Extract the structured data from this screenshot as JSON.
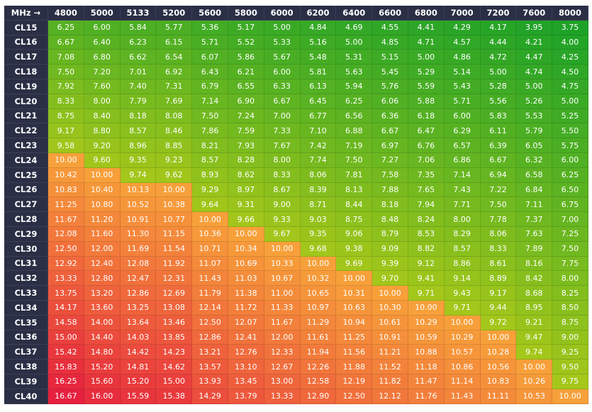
{
  "table": {
    "corner": "MHz →",
    "columns": [
      "4800",
      "5000",
      "5133",
      "5200",
      "5600",
      "5800",
      "6000",
      "6200",
      "6400",
      "6600",
      "6800",
      "7000",
      "7200",
      "7600",
      "8000"
    ],
    "rows": [
      {
        "label": "CL15",
        "cells": [
          "6.25",
          "6.00",
          "5.84",
          "5.77",
          "5.36",
          "5.17",
          "5.00",
          "4.84",
          "4.69",
          "4.55",
          "4.41",
          "4.29",
          "4.17",
          "3.95",
          "3.75"
        ]
      },
      {
        "label": "CL16",
        "cells": [
          "6.67",
          "6.40",
          "6.23",
          "6.15",
          "5.71",
          "5.52",
          "5.33",
          "5.16",
          "5.00",
          "4.85",
          "4.71",
          "4.57",
          "4.44",
          "4.21",
          "4.00"
        ]
      },
      {
        "label": "CL17",
        "cells": [
          "7.08",
          "6.80",
          "6.62",
          "6.54",
          "6.07",
          "5.86",
          "5.67",
          "5.48",
          "5.31",
          "5.15",
          "5.00",
          "4.86",
          "4.72",
          "4.47",
          "4.25"
        ]
      },
      {
        "label": "CL18",
        "cells": [
          "7.50",
          "7.20",
          "7.01",
          "6.92",
          "6.43",
          "6.21",
          "6.00",
          "5.81",
          "5.63",
          "5.45",
          "5.29",
          "5.14",
          "5.00",
          "4.74",
          "4.50"
        ]
      },
      {
        "label": "CL19",
        "cells": [
          "7.92",
          "7.60",
          "7.40",
          "7.31",
          "6.79",
          "6.55",
          "6.33",
          "6.13",
          "5.94",
          "5.76",
          "5.59",
          "5.43",
          "5.28",
          "5.00",
          "4.75"
        ]
      },
      {
        "label": "CL20",
        "cells": [
          "8.33",
          "8.00",
          "7.79",
          "7.69",
          "7.14",
          "6.90",
          "6.67",
          "6.45",
          "6.25",
          "6.06",
          "5.88",
          "5.71",
          "5.56",
          "5.26",
          "5.00"
        ]
      },
      {
        "label": "CL21",
        "cells": [
          "8.75",
          "8.40",
          "8.18",
          "8.08",
          "7.50",
          "7.24",
          "7.00",
          "6.77",
          "6.56",
          "6.36",
          "6.18",
          "6.00",
          "5.83",
          "5.53",
          "5.25"
        ]
      },
      {
        "label": "CL22",
        "cells": [
          "9.17",
          "8.80",
          "8.57",
          "8.46",
          "7.86",
          "7.59",
          "7.33",
          "7.10",
          "6.88",
          "6.67",
          "6.47",
          "6.29",
          "6.11",
          "5.79",
          "5.50"
        ]
      },
      {
        "label": "CL23",
        "cells": [
          "9.58",
          "9.20",
          "8.96",
          "8.85",
          "8.21",
          "7.93",
          "7.67",
          "7.42",
          "7.19",
          "6.97",
          "6.76",
          "6.57",
          "6.39",
          "6.05",
          "5.75"
        ]
      },
      {
        "label": "CL24",
        "cells": [
          "10.00",
          "9.60",
          "9.35",
          "9.23",
          "8.57",
          "8.28",
          "8.00",
          "7.74",
          "7.50",
          "7.27",
          "7.06",
          "6.86",
          "6.67",
          "6.32",
          "6.00"
        ]
      },
      {
        "label": "CL25",
        "cells": [
          "10.42",
          "10.00",
          "9.74",
          "9.62",
          "8.93",
          "8.62",
          "8.33",
          "8.06",
          "7.81",
          "7.58",
          "7.35",
          "7.14",
          "6.94",
          "6.58",
          "6.25"
        ]
      },
      {
        "label": "CL26",
        "cells": [
          "10.83",
          "10.40",
          "10.13",
          "10.00",
          "9.29",
          "8.97",
          "8.67",
          "8.39",
          "8.13",
          "7.88",
          "7.65",
          "7.43",
          "7.22",
          "6.84",
          "6.50"
        ]
      },
      {
        "label": "CL27",
        "cells": [
          "11.25",
          "10.80",
          "10.52",
          "10.38",
          "9.64",
          "9.31",
          "9.00",
          "8.71",
          "8.44",
          "8.18",
          "7.94",
          "7.71",
          "7.50",
          "7.11",
          "6.75"
        ]
      },
      {
        "label": "CL28",
        "cells": [
          "11.67",
          "11.20",
          "10.91",
          "10.77",
          "10.00",
          "9.66",
          "9.33",
          "9.03",
          "8.75",
          "8.48",
          "8.24",
          "8.00",
          "7.78",
          "7.37",
          "7.00"
        ]
      },
      {
        "label": "CL29",
        "cells": [
          "12.08",
          "11.60",
          "11.30",
          "11.15",
          "10.36",
          "10.00",
          "9.67",
          "9.35",
          "9.06",
          "8.79",
          "8.53",
          "8.29",
          "8.06",
          "7.63",
          "7.25"
        ]
      },
      {
        "label": "CL30",
        "cells": [
          "12.50",
          "12.00",
          "11.69",
          "11.54",
          "10.71",
          "10.34",
          "10.00",
          "9.68",
          "9.38",
          "9.09",
          "8.82",
          "8.57",
          "8.33",
          "7.89",
          "7.50"
        ]
      },
      {
        "label": "CL31",
        "cells": [
          "12.92",
          "12.40",
          "12.08",
          "11.92",
          "11.07",
          "10.69",
          "10.33",
          "10.00",
          "9.69",
          "9.39",
          "9.12",
          "8.86",
          "8.61",
          "8.16",
          "7.75"
        ]
      },
      {
        "label": "CL32",
        "cells": [
          "13.33",
          "12.80",
          "12.47",
          "12.31",
          "11.43",
          "11.03",
          "10.67",
          "10.32",
          "10.00",
          "9.70",
          "9.41",
          "9.14",
          "8.89",
          "8.42",
          "8.00"
        ]
      },
      {
        "label": "CL33",
        "cells": [
          "13.75",
          "13.20",
          "12.86",
          "12.69",
          "11.79",
          "11.38",
          "11.00",
          "10.65",
          "10.31",
          "10.00",
          "9.71",
          "9.43",
          "9.17",
          "8.68",
          "8.25"
        ]
      },
      {
        "label": "CL34",
        "cells": [
          "14.17",
          "13.60",
          "13.25",
          "13.08",
          "12.14",
          "11.72",
          "11.33",
          "10.97",
          "10.63",
          "10.30",
          "10.00",
          "9.71",
          "9.44",
          "8.95",
          "8.50"
        ]
      },
      {
        "label": "CL35",
        "cells": [
          "14.58",
          "14.00",
          "13.64",
          "13.46",
          "12.50",
          "12.07",
          "11.67",
          "11.29",
          "10.94",
          "10.61",
          "10.29",
          "10.00",
          "9.72",
          "9.21",
          "8.75"
        ]
      },
      {
        "label": "CL36",
        "cells": [
          "15.00",
          "14.40",
          "14.03",
          "13.85",
          "12.86",
          "12.41",
          "12.00",
          "11.61",
          "11.25",
          "10.91",
          "10.59",
          "10.29",
          "10.00",
          "9.47",
          "9.00"
        ]
      },
      {
        "label": "CL37",
        "cells": [
          "15.42",
          "14.80",
          "14.42",
          "14.23",
          "13.21",
          "12.76",
          "12.33",
          "11.94",
          "11.56",
          "11.21",
          "10.88",
          "10.57",
          "10.28",
          "9.74",
          "9.25"
        ]
      },
      {
        "label": "CL38",
        "cells": [
          "15.83",
          "15.20",
          "14.81",
          "14.62",
          "13.57",
          "13.10",
          "12.67",
          "12.26",
          "11.88",
          "11.52",
          "11.18",
          "10.86",
          "10.56",
          "10.00",
          "9.50"
        ]
      },
      {
        "label": "CL39",
        "cells": [
          "16.25",
          "15.60",
          "15.20",
          "15.00",
          "13.93",
          "13.45",
          "13.00",
          "12.58",
          "12.19",
          "11.82",
          "11.47",
          "11.14",
          "10.83",
          "10.26",
          "9.75"
        ]
      },
      {
        "label": "CL40",
        "cells": [
          "16.67",
          "16.00",
          "15.59",
          "15.38",
          "14.29",
          "13.79",
          "13.33",
          "12.90",
          "12.50",
          "12.12",
          "11.76",
          "11.43",
          "11.11",
          "10.53",
          "10.00"
        ]
      }
    ]
  }
}
